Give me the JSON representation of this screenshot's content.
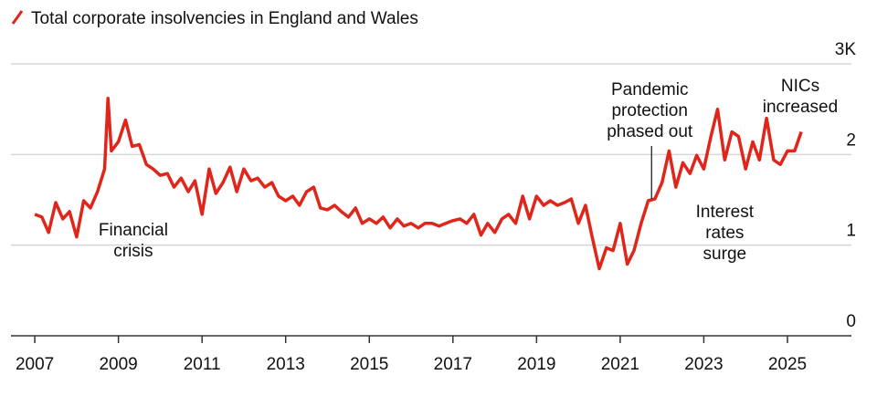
{
  "chart_data": {
    "type": "line",
    "series": [
      {
        "name": "Total corporate insolvencies in England and Wales",
        "color": "#e0251b",
        "x": [
          2007.0,
          2007.17,
          2007.33,
          2007.5,
          2007.67,
          2007.83,
          2008.0,
          2008.17,
          2008.33,
          2008.5,
          2008.67,
          2008.75,
          2008.83,
          2009.0,
          2009.17,
          2009.33,
          2009.5,
          2009.67,
          2009.83,
          2010.0,
          2010.17,
          2010.33,
          2010.5,
          2010.67,
          2010.83,
          2011.0,
          2011.17,
          2011.33,
          2011.5,
          2011.67,
          2011.83,
          2012.0,
          2012.17,
          2012.33,
          2012.5,
          2012.67,
          2012.83,
          2013.0,
          2013.17,
          2013.33,
          2013.5,
          2013.67,
          2013.83,
          2014.0,
          2014.17,
          2014.33,
          2014.5,
          2014.67,
          2014.83,
          2015.0,
          2015.17,
          2015.33,
          2015.5,
          2015.67,
          2015.83,
          2016.0,
          2016.17,
          2016.33,
          2016.5,
          2016.67,
          2016.83,
          2017.0,
          2017.17,
          2017.33,
          2017.5,
          2017.67,
          2017.83,
          2018.0,
          2018.17,
          2018.33,
          2018.5,
          2018.67,
          2018.83,
          2019.0,
          2019.17,
          2019.33,
          2019.5,
          2019.67,
          2019.83,
          2020.0,
          2020.17,
          2020.33,
          2020.5,
          2020.67,
          2020.83,
          2021.0,
          2021.17,
          2021.33,
          2021.5,
          2021.67,
          2021.83,
          2022.0,
          2022.17,
          2022.33,
          2022.5,
          2022.67,
          2022.83,
          2023.0,
          2023.17,
          2023.33,
          2023.5,
          2023.67,
          2023.83,
          2024.0,
          2024.17,
          2024.33,
          2024.5,
          2024.67,
          2024.83,
          2025.0,
          2025.17,
          2025.33
        ],
        "values": [
          1.34,
          1.31,
          1.14,
          1.47,
          1.29,
          1.37,
          1.09,
          1.49,
          1.41,
          1.59,
          1.84,
          2.62,
          2.04,
          2.14,
          2.38,
          2.09,
          2.11,
          1.89,
          1.84,
          1.77,
          1.79,
          1.64,
          1.74,
          1.59,
          1.71,
          1.34,
          1.84,
          1.57,
          1.69,
          1.86,
          1.59,
          1.84,
          1.71,
          1.74,
          1.64,
          1.69,
          1.54,
          1.49,
          1.54,
          1.44,
          1.59,
          1.64,
          1.41,
          1.39,
          1.44,
          1.37,
          1.31,
          1.41,
          1.24,
          1.29,
          1.24,
          1.31,
          1.19,
          1.29,
          1.21,
          1.24,
          1.19,
          1.24,
          1.24,
          1.21,
          1.24,
          1.27,
          1.29,
          1.24,
          1.34,
          1.11,
          1.24,
          1.14,
          1.29,
          1.34,
          1.24,
          1.54,
          1.29,
          1.54,
          1.44,
          1.49,
          1.44,
          1.47,
          1.51,
          1.24,
          1.44,
          1.09,
          0.74,
          0.97,
          0.94,
          1.24,
          0.79,
          0.94,
          1.24,
          1.49,
          1.51,
          1.69,
          2.04,
          1.64,
          1.91,
          1.79,
          1.99,
          1.84,
          2.2,
          2.5,
          1.94,
          2.25,
          2.2,
          1.84,
          2.14,
          1.94,
          2.4,
          1.94,
          1.89,
          2.04,
          2.04,
          2.25
        ]
      }
    ],
    "xlim": [
      2006.43,
      2026.53
    ],
    "xticks": [
      2007,
      2009,
      2011,
      2013,
      2015,
      2017,
      2019,
      2021,
      2023,
      2025
    ],
    "ylim": [
      0,
      3
    ],
    "yticks": [
      0,
      1,
      2,
      {
        "value": 3,
        "label": "3K"
      }
    ],
    "grid": true,
    "annotations": [
      {
        "lines": [
          "Financial",
          "crisis"
        ],
        "x": 2008.7
      },
      {
        "lines": [
          "Pandemic",
          "protection",
          "phased out"
        ],
        "x": 2021.75
      },
      {
        "lines": [
          "Interest",
          "rates",
          "surge"
        ],
        "x": 2023.5
      },
      {
        "lines": [
          "NICs",
          "increased"
        ],
        "x": 2025.0
      }
    ]
  }
}
